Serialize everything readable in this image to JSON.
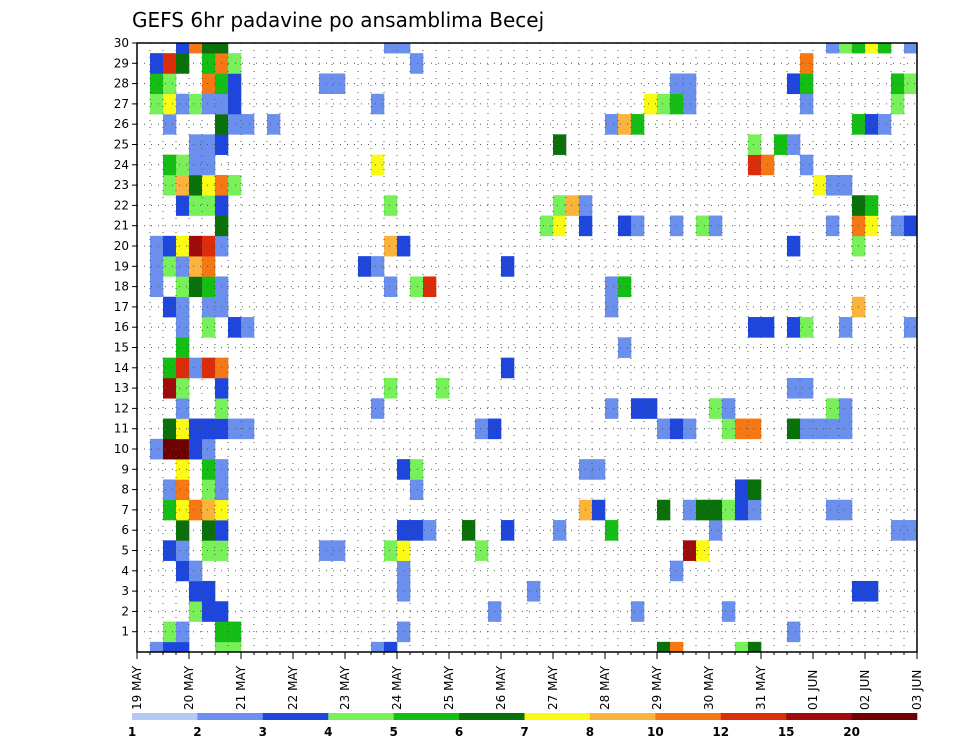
{
  "chart_data": {
    "type": "heatmap",
    "title": "GEFS 6hr padavine po ansamblima Becej",
    "xlabel": "",
    "ylabel": "",
    "y_ticks": [
      "1",
      "2",
      "3",
      "4",
      "5",
      "6",
      "7",
      "8",
      "9",
      "10",
      "11",
      "12",
      "13",
      "14",
      "15",
      "16",
      "17",
      "18",
      "19",
      "20",
      "21",
      "22",
      "23",
      "24",
      "25",
      "26",
      "27",
      "28",
      "29",
      "30"
    ],
    "x_ticks": [
      "19 MAY",
      "20 MAY",
      "21 MAY",
      "22 MAY",
      "23 MAY",
      "24 MAY",
      "25 MAY",
      "26 MAY",
      "27 MAY",
      "28 MAY",
      "29 MAY",
      "30 MAY",
      "31 MAY",
      "01 JUN",
      "02 JUN",
      "03 JUN"
    ],
    "x_range_steps": [
      0,
      60
    ],
    "y_range_members": [
      0,
      30
    ],
    "grid": true,
    "color_levels": [
      "1",
      "2",
      "3",
      "4",
      "5",
      "6",
      "7",
      "8",
      "10",
      "12",
      "15",
      "20"
    ],
    "colors": [
      "#b4c8f5",
      "#6b8fed",
      "#1e46dc",
      "#78f05a",
      "#14be14",
      "#0a700a",
      "#fafa14",
      "#fab43c",
      "#f57814",
      "#dc2d0a",
      "#a00a0a",
      "#6e0000"
    ],
    "cells": [
      [
        1,
        0,
        1
      ],
      [
        2,
        0,
        2
      ],
      [
        3,
        0,
        2
      ],
      [
        6,
        0,
        3
      ],
      [
        7,
        0,
        3
      ],
      [
        18,
        0,
        1
      ],
      [
        19,
        0,
        2
      ],
      [
        40,
        0,
        5
      ],
      [
        41,
        0,
        8
      ],
      [
        46,
        0,
        3
      ],
      [
        47,
        0,
        5
      ],
      [
        2,
        1,
        3
      ],
      [
        3,
        1,
        1
      ],
      [
        6,
        1,
        4
      ],
      [
        7,
        1,
        4
      ],
      [
        20,
        1,
        1
      ],
      [
        50,
        1,
        1
      ],
      [
        4,
        2,
        3
      ],
      [
        5,
        2,
        2
      ],
      [
        6,
        2,
        2
      ],
      [
        27,
        2,
        1
      ],
      [
        38,
        2,
        1
      ],
      [
        45,
        2,
        1
      ],
      [
        4,
        3,
        2
      ],
      [
        5,
        3,
        2
      ],
      [
        20,
        3,
        1
      ],
      [
        30,
        3,
        1
      ],
      [
        55,
        3,
        2
      ],
      [
        56,
        3,
        2
      ],
      [
        3,
        4,
        2
      ],
      [
        4,
        4,
        1
      ],
      [
        20,
        4,
        1
      ],
      [
        41,
        4,
        1
      ],
      [
        2,
        5,
        2
      ],
      [
        3,
        5,
        1
      ],
      [
        5,
        5,
        3
      ],
      [
        6,
        5,
        3
      ],
      [
        14,
        5,
        1
      ],
      [
        15,
        5,
        1
      ],
      [
        19,
        5,
        3
      ],
      [
        20,
        5,
        6
      ],
      [
        26,
        5,
        3
      ],
      [
        42,
        5,
        10
      ],
      [
        43,
        5,
        6
      ],
      [
        3,
        6,
        5
      ],
      [
        5,
        6,
        5
      ],
      [
        6,
        6,
        2
      ],
      [
        20,
        6,
        2
      ],
      [
        21,
        6,
        2
      ],
      [
        22,
        6,
        1
      ],
      [
        25,
        6,
        5
      ],
      [
        28,
        6,
        2
      ],
      [
        32,
        6,
        1
      ],
      [
        36,
        6,
        4
      ],
      [
        44,
        6,
        1
      ],
      [
        58,
        6,
        1
      ],
      [
        59,
        6,
        1
      ],
      [
        2,
        7,
        4
      ],
      [
        3,
        7,
        6
      ],
      [
        4,
        7,
        8
      ],
      [
        5,
        7,
        7
      ],
      [
        6,
        7,
        6
      ],
      [
        34,
        7,
        7
      ],
      [
        35,
        7,
        2
      ],
      [
        40,
        7,
        5
      ],
      [
        42,
        7,
        1
      ],
      [
        43,
        7,
        5
      ],
      [
        44,
        7,
        5
      ],
      [
        45,
        7,
        3
      ],
      [
        46,
        7,
        2
      ],
      [
        47,
        7,
        1
      ],
      [
        53,
        7,
        1
      ],
      [
        54,
        7,
        1
      ],
      [
        2,
        8,
        1
      ],
      [
        3,
        8,
        8
      ],
      [
        5,
        8,
        3
      ],
      [
        6,
        8,
        1
      ],
      [
        21,
        8,
        1
      ],
      [
        46,
        8,
        2
      ],
      [
        47,
        8,
        5
      ],
      [
        3,
        9,
        6
      ],
      [
        5,
        9,
        4
      ],
      [
        6,
        9,
        1
      ],
      [
        20,
        9,
        2
      ],
      [
        21,
        9,
        3
      ],
      [
        34,
        9,
        1
      ],
      [
        35,
        9,
        1
      ],
      [
        1,
        10,
        1
      ],
      [
        2,
        10,
        11
      ],
      [
        3,
        10,
        11
      ],
      [
        4,
        10,
        2
      ],
      [
        5,
        10,
        1
      ],
      [
        2,
        11,
        5
      ],
      [
        3,
        11,
        6
      ],
      [
        4,
        11,
        2
      ],
      [
        5,
        11,
        2
      ],
      [
        6,
        11,
        2
      ],
      [
        7,
        11,
        1
      ],
      [
        8,
        11,
        1
      ],
      [
        26,
        11,
        1
      ],
      [
        27,
        11,
        2
      ],
      [
        40,
        11,
        1
      ],
      [
        41,
        11,
        2
      ],
      [
        42,
        11,
        1
      ],
      [
        45,
        11,
        3
      ],
      [
        46,
        11,
        8
      ],
      [
        47,
        11,
        8
      ],
      [
        50,
        11,
        5
      ],
      [
        51,
        11,
        1
      ],
      [
        52,
        11,
        1
      ],
      [
        53,
        11,
        1
      ],
      [
        54,
        11,
        1
      ],
      [
        3,
        12,
        1
      ],
      [
        6,
        12,
        3
      ],
      [
        18,
        12,
        1
      ],
      [
        36,
        12,
        1
      ],
      [
        38,
        12,
        2
      ],
      [
        39,
        12,
        2
      ],
      [
        44,
        12,
        3
      ],
      [
        45,
        12,
        1
      ],
      [
        53,
        12,
        3
      ],
      [
        54,
        12,
        1
      ],
      [
        2,
        13,
        10
      ],
      [
        3,
        13,
        3
      ],
      [
        6,
        13,
        2
      ],
      [
        19,
        13,
        3
      ],
      [
        23,
        13,
        3
      ],
      [
        50,
        13,
        1
      ],
      [
        51,
        13,
        1
      ],
      [
        2,
        14,
        4
      ],
      [
        3,
        14,
        9
      ],
      [
        4,
        14,
        1
      ],
      [
        5,
        14,
        9
      ],
      [
        6,
        14,
        8
      ],
      [
        28,
        14,
        2
      ],
      [
        3,
        15,
        4
      ],
      [
        37,
        15,
        1
      ],
      [
        3,
        16,
        1
      ],
      [
        5,
        16,
        3
      ],
      [
        7,
        16,
        2
      ],
      [
        8,
        16,
        1
      ],
      [
        47,
        16,
        2
      ],
      [
        48,
        16,
        2
      ],
      [
        50,
        16,
        2
      ],
      [
        51,
        16,
        3
      ],
      [
        54,
        16,
        1
      ],
      [
        59,
        16,
        1
      ],
      [
        2,
        17,
        2
      ],
      [
        3,
        17,
        1
      ],
      [
        5,
        17,
        1
      ],
      [
        6,
        17,
        1
      ],
      [
        36,
        17,
        1
      ],
      [
        55,
        17,
        7
      ],
      [
        1,
        18,
        1
      ],
      [
        3,
        18,
        3
      ],
      [
        4,
        18,
        5
      ],
      [
        5,
        18,
        4
      ],
      [
        6,
        18,
        1
      ],
      [
        19,
        18,
        1
      ],
      [
        21,
        18,
        3
      ],
      [
        22,
        18,
        9
      ],
      [
        36,
        18,
        1
      ],
      [
        37,
        18,
        4
      ],
      [
        1,
        19,
        1
      ],
      [
        2,
        19,
        3
      ],
      [
        3,
        19,
        1
      ],
      [
        4,
        19,
        7
      ],
      [
        5,
        19,
        8
      ],
      [
        17,
        19,
        2
      ],
      [
        18,
        19,
        1
      ],
      [
        28,
        19,
        2
      ],
      [
        1,
        20,
        1
      ],
      [
        2,
        20,
        2
      ],
      [
        3,
        20,
        6
      ],
      [
        4,
        20,
        10
      ],
      [
        5,
        20,
        9
      ],
      [
        6,
        20,
        1
      ],
      [
        19,
        20,
        7
      ],
      [
        20,
        20,
        2
      ],
      [
        50,
        20,
        2
      ],
      [
        55,
        20,
        3
      ],
      [
        6,
        21,
        5
      ],
      [
        31,
        21,
        3
      ],
      [
        32,
        21,
        6
      ],
      [
        34,
        21,
        2
      ],
      [
        37,
        21,
        2
      ],
      [
        38,
        21,
        1
      ],
      [
        41,
        21,
        1
      ],
      [
        43,
        21,
        3
      ],
      [
        44,
        21,
        1
      ],
      [
        53,
        21,
        1
      ],
      [
        55,
        21,
        8
      ],
      [
        56,
        21,
        6
      ],
      [
        58,
        21,
        1
      ],
      [
        59,
        21,
        2
      ],
      [
        3,
        22,
        2
      ],
      [
        4,
        22,
        3
      ],
      [
        5,
        22,
        3
      ],
      [
        6,
        22,
        2
      ],
      [
        19,
        22,
        3
      ],
      [
        32,
        22,
        3
      ],
      [
        33,
        22,
        7
      ],
      [
        34,
        22,
        1
      ],
      [
        55,
        22,
        5
      ],
      [
        56,
        22,
        4
      ],
      [
        2,
        23,
        3
      ],
      [
        3,
        23,
        7
      ],
      [
        4,
        23,
        5
      ],
      [
        5,
        23,
        6
      ],
      [
        6,
        23,
        8
      ],
      [
        7,
        23,
        3
      ],
      [
        52,
        23,
        6
      ],
      [
        53,
        23,
        1
      ],
      [
        54,
        23,
        1
      ],
      [
        2,
        24,
        4
      ],
      [
        3,
        24,
        3
      ],
      [
        4,
        24,
        1
      ],
      [
        5,
        24,
        1
      ],
      [
        18,
        24,
        6
      ],
      [
        47,
        24,
        9
      ],
      [
        48,
        24,
        8
      ],
      [
        51,
        24,
        1
      ],
      [
        4,
        25,
        1
      ],
      [
        5,
        25,
        1
      ],
      [
        6,
        25,
        2
      ],
      [
        32,
        25,
        5
      ],
      [
        47,
        25,
        3
      ],
      [
        49,
        25,
        4
      ],
      [
        50,
        25,
        1
      ],
      [
        2,
        26,
        1
      ],
      [
        6,
        26,
        5
      ],
      [
        7,
        26,
        1
      ],
      [
        8,
        26,
        1
      ],
      [
        10,
        26,
        1
      ],
      [
        36,
        26,
        1
      ],
      [
        37,
        26,
        7
      ],
      [
        38,
        26,
        4
      ],
      [
        55,
        26,
        4
      ],
      [
        56,
        26,
        2
      ],
      [
        57,
        26,
        1
      ],
      [
        1,
        27,
        3
      ],
      [
        2,
        27,
        6
      ],
      [
        3,
        27,
        1
      ],
      [
        4,
        27,
        3
      ],
      [
        5,
        27,
        1
      ],
      [
        6,
        27,
        1
      ],
      [
        7,
        27,
        2
      ],
      [
        18,
        27,
        1
      ],
      [
        39,
        27,
        6
      ],
      [
        40,
        27,
        3
      ],
      [
        41,
        27,
        4
      ],
      [
        42,
        27,
        1
      ],
      [
        51,
        27,
        1
      ],
      [
        58,
        27,
        3
      ],
      [
        1,
        28,
        4
      ],
      [
        2,
        28,
        3
      ],
      [
        5,
        28,
        8
      ],
      [
        6,
        28,
        4
      ],
      [
        7,
        28,
        2
      ],
      [
        14,
        28,
        1
      ],
      [
        15,
        28,
        1
      ],
      [
        41,
        28,
        1
      ],
      [
        42,
        28,
        1
      ],
      [
        50,
        28,
        2
      ],
      [
        51,
        28,
        4
      ],
      [
        58,
        28,
        4
      ],
      [
        59,
        28,
        3
      ],
      [
        1,
        29,
        2
      ],
      [
        2,
        29,
        9
      ],
      [
        3,
        29,
        5
      ],
      [
        5,
        29,
        4
      ],
      [
        6,
        29,
        8
      ],
      [
        7,
        29,
        3
      ],
      [
        21,
        29,
        1
      ],
      [
        51,
        29,
        8
      ],
      [
        3,
        30,
        2
      ],
      [
        4,
        30,
        8
      ],
      [
        5,
        30,
        5
      ],
      [
        6,
        30,
        5
      ],
      [
        19,
        30,
        1
      ],
      [
        20,
        30,
        1
      ],
      [
        53,
        30,
        1
      ],
      [
        54,
        30,
        3
      ],
      [
        55,
        30,
        4
      ],
      [
        56,
        30,
        6
      ],
      [
        57,
        30,
        4
      ],
      [
        59,
        30,
        1
      ],
      [
        3,
        31,
        4
      ],
      [
        5,
        31,
        1
      ],
      [
        6,
        31,
        1
      ],
      [
        18,
        31,
        1
      ],
      [
        27,
        31,
        3
      ],
      [
        44,
        31,
        1
      ]
    ]
  }
}
